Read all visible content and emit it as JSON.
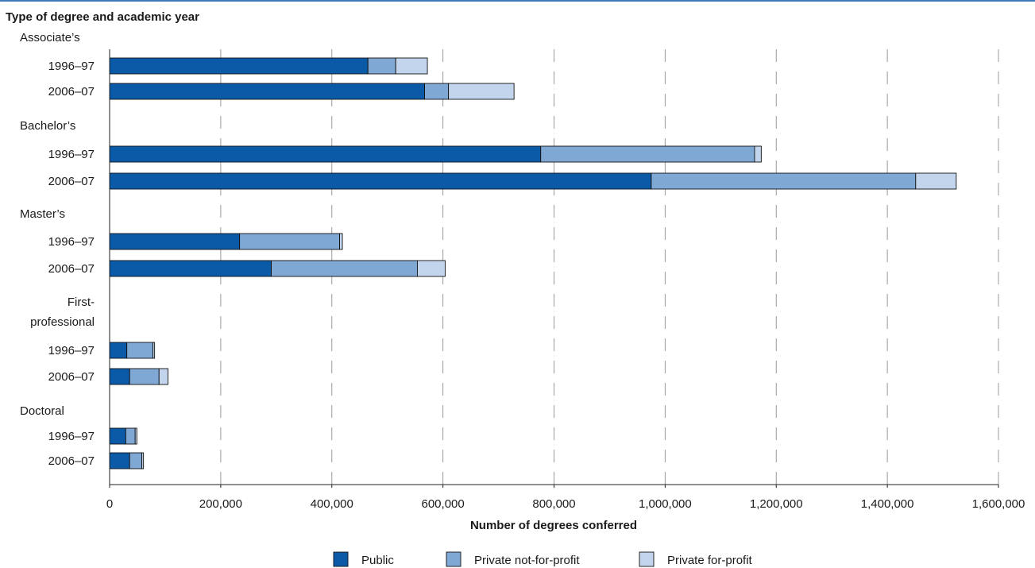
{
  "chart_data": {
    "type": "bar",
    "orientation": "horizontal",
    "stacked": true,
    "ylabel": "Type of degree and academic year",
    "xlabel": "Number of degrees conferred",
    "xlim": [
      0,
      1600000
    ],
    "xticks": [
      "0",
      "200,000",
      "400,000",
      "600,000",
      "800,000",
      "1,000,000",
      "1,200,000",
      "1,400,000",
      "1,600,000"
    ],
    "grid": "vertical dashed",
    "legend_position": "bottom",
    "series": [
      {
        "name": "Public",
        "color": "#0b5aa8"
      },
      {
        "name": "Private not-for-profit",
        "color": "#7fa8d4"
      },
      {
        "name": "Private for-profit",
        "color": "#c3d5ec"
      }
    ],
    "groups": [
      {
        "label": "Associate’s",
        "rows": [
          {
            "label": "1996–97",
            "values": [
              465000,
              50000,
              57000
            ]
          },
          {
            "label": "2006–07",
            "values": [
              567000,
              43000,
              118000
            ]
          }
        ]
      },
      {
        "label": "Bachelor’s",
        "rows": [
          {
            "label": "1996–97",
            "values": [
              776000,
              385000,
              12000
            ]
          },
          {
            "label": "2006–07",
            "values": [
              975000,
              476000,
              73000
            ]
          }
        ]
      },
      {
        "label": "Master’s",
        "rows": [
          {
            "label": "1996–97",
            "values": [
              234000,
              180000,
              5000
            ]
          },
          {
            "label": "2006–07",
            "values": [
              291000,
              263000,
              50000
            ]
          }
        ]
      },
      {
        "label": "First-professional",
        "label_lines": [
          "First-",
          "professional"
        ],
        "rows": [
          {
            "label": "1996–97",
            "values": [
              31000,
              47000,
              3000
            ]
          },
          {
            "label": "2006–07",
            "values": [
              36000,
              53000,
              16000
            ]
          }
        ]
      },
      {
        "label": "Doctoral",
        "rows": [
          {
            "label": "1996–97",
            "values": [
              29000,
              17000,
              3000
            ]
          },
          {
            "label": "2006–07",
            "values": [
              36000,
              22000,
              3000
            ]
          }
        ]
      }
    ]
  }
}
